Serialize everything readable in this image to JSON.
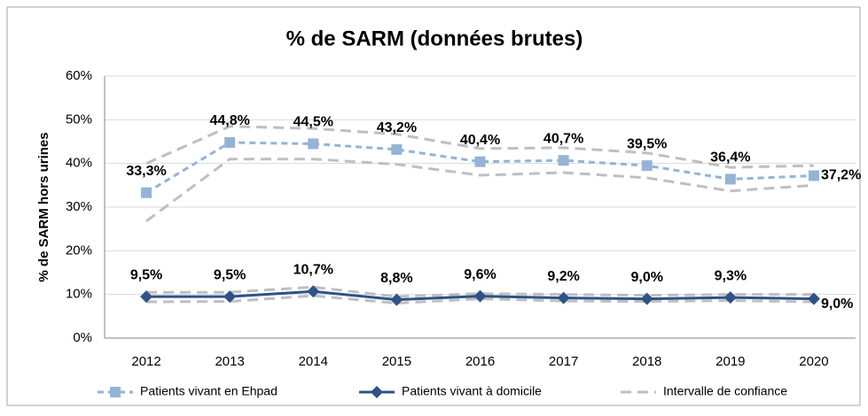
{
  "chart_data": {
    "type": "line",
    "title": "% de SARM (données brutes)",
    "y_label": "% de SARM hors urines",
    "categories": [
      "2012",
      "2013",
      "2014",
      "2015",
      "2016",
      "2017",
      "2018",
      "2019",
      "2020"
    ],
    "ylim": [
      0,
      60
    ],
    "yticks": [
      {
        "value": 0,
        "label": "0%"
      },
      {
        "value": 10,
        "label": "10%"
      },
      {
        "value": 20,
        "label": "20%"
      },
      {
        "value": 30,
        "label": "30%"
      },
      {
        "value": 40,
        "label": "40%"
      },
      {
        "value": 50,
        "label": "50%"
      },
      {
        "value": 60,
        "label": "60%"
      }
    ],
    "grid": true,
    "legend": "bottom",
    "series": [
      {
        "name": "Patients vivant en Ehpad",
        "color": "#95b3d7",
        "marker": "square",
        "dashed": true,
        "values": [
          33.3,
          44.8,
          44.5,
          43.2,
          40.4,
          40.7,
          39.5,
          36.4,
          37.2
        ],
        "value_labels": [
          "33,3%",
          "44,8%",
          "44,5%",
          "43,2%",
          "40,4%",
          "40,7%",
          "39,5%",
          "36,4%",
          "37,2%"
        ]
      },
      {
        "name": "Patients vivant à domicile",
        "color": "#2f5287",
        "marker": "diamond",
        "dashed": false,
        "values": [
          9.5,
          9.5,
          10.7,
          8.8,
          9.6,
          9.2,
          9.0,
          9.3,
          9.0
        ],
        "value_labels": [
          "9,5%",
          "9,5%",
          "10,7%",
          "8,8%",
          "9,6%",
          "9,2%",
          "9,0%",
          "9,3%",
          "9,0%"
        ]
      }
    ],
    "confidence_interval": {
      "name": "Intervalle de confiance",
      "color": "#bfbfbf",
      "bands": [
        {
          "upper": [
            40,
            48.5,
            48,
            46.7,
            43.4,
            43.6,
            42.4,
            39.1,
            39.5
          ],
          "lower": [
            26.8,
            41,
            41,
            39.8,
            37.3,
            37.9,
            36.7,
            33.7,
            35
          ]
        },
        {
          "upper": [
            10.5,
            10.5,
            11.7,
            9.5,
            10.2,
            10,
            9.8,
            10,
            10
          ],
          "lower": [
            8.3,
            8.4,
            9.7,
            8,
            9,
            8.5,
            8.4,
            8.6,
            8.3
          ]
        }
      ]
    }
  }
}
